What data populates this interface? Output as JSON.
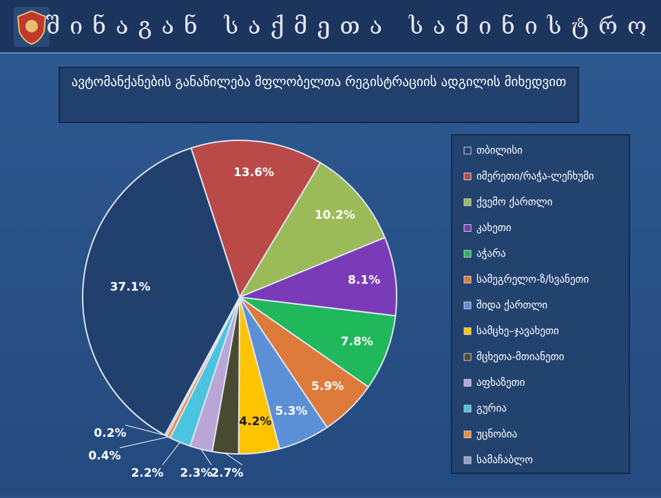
{
  "header": {
    "title": "შინაგან საქმეთა სამინისტრო"
  },
  "chart_data": {
    "type": "pie",
    "title": "ავტომანქანების განაწილება მფლობელთა რეგისტრაციის ადგილის მიხედვით",
    "categories": [
      "თბილისი",
      "იმერეთი/რაჭა-ლეჩხუმი",
      "ქვემო ქართლი",
      "კახეთი",
      "აჭარა",
      "სამეგრელო-ზ/სვანეთი",
      "შიდა ქართლი",
      "სამცხე–ჯავახეთი",
      "მცხეთა-მთიანეთი",
      "აფხაზეთი",
      "გურია",
      "უცნობია",
      "სამაჩაბლო"
    ],
    "values": [
      37.1,
      13.6,
      10.2,
      8.1,
      7.8,
      5.9,
      5.3,
      4.2,
      2.7,
      2.3,
      2.2,
      0.4,
      0.2
    ],
    "value_labels": [
      "37.1%",
      "13.6%",
      "10.2%",
      "8.1%",
      "7.8%",
      "5.9%",
      "5.3%",
      "4.2%",
      "2.7%",
      "2.3%",
      "2.2%",
      "0.4%",
      "0.2%"
    ],
    "colors": [
      "#22406e",
      "#b94a48",
      "#9bbb59",
      "#7a3bb8",
      "#1fb85a",
      "#dd7a3a",
      "#5b8fd6",
      "#ffc400",
      "#4a4a32",
      "#b7a6d6",
      "#4bc4e0",
      "#f08a3c",
      "#8ea0c6"
    ],
    "legend": "right"
  }
}
